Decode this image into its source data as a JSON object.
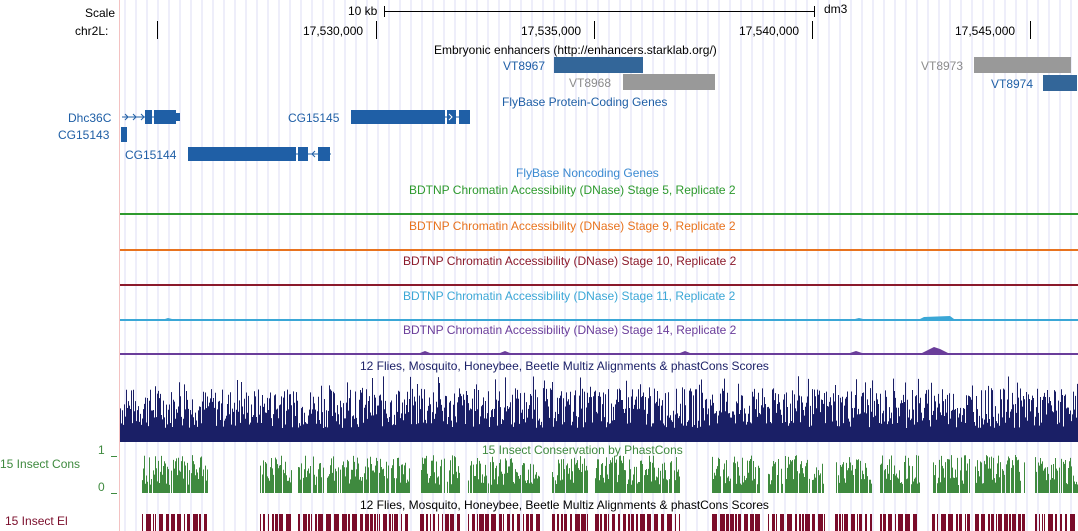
{
  "ruler": {
    "scale_label": "Scale",
    "chrom_label": "chr2L:",
    "scale_bar_text": "10 kb",
    "assembly": "dm3",
    "positions": [
      "17,530,000",
      "17,535,000",
      "17,540,000",
      "17,545,000"
    ]
  },
  "enhancers": {
    "title": "Embryonic enhancers (http://enhancers.starklab.org/)",
    "items": [
      "VT8967",
      "VT8968",
      "VT8973",
      "VT8974"
    ],
    "colors": {
      "blue": "#336699",
      "gray": "#999999"
    }
  },
  "protein_genes": {
    "title": "FlyBase Protein-Coding Genes",
    "genes": [
      "Dhc36C",
      "CG15143",
      "CG15145",
      "CG15144"
    ],
    "color": "#1f5fa6"
  },
  "noncoding_genes": {
    "title": "FlyBase Noncoding Genes"
  },
  "dnase_tracks": [
    {
      "title": "BDTNP Chromatin Accessibility (DNase) Stage 5, Replicate 2",
      "color": "#2e9a2e"
    },
    {
      "title": "BDTNP Chromatin Accessibility (DNase) Stage 9, Replicate 2",
      "color": "#e8731e"
    },
    {
      "title": "BDTNP Chromatin Accessibility (DNase) Stage 10, Replicate 2",
      "color": "#8b1a2b"
    },
    {
      "title": "BDTNP Chromatin Accessibility (DNase) Stage 11, Replicate 2",
      "color": "#3ba7d6"
    },
    {
      "title": "BDTNP Chromatin Accessibility (DNase) Stage 14, Replicate 2",
      "color": "#6a3d9a"
    }
  ],
  "multiz": {
    "title": "12 Flies, Mosquito, Honeybee, Beetle Multiz Alignments & phastCons Scores",
    "color": "#1a1f66"
  },
  "phastcons": {
    "title": "15 Insect Conservation by PhastCons",
    "left_label": "15 Insect Cons",
    "y_max": "1",
    "y_min": "0",
    "color": "#3f8a3f"
  },
  "elements": {
    "title": "12 Flies, Mosquito, Honeybee, Beetle Multiz Alignments & phastCons Scores",
    "left_label": "15 Insect El",
    "color": "#7a0c2a"
  }
}
